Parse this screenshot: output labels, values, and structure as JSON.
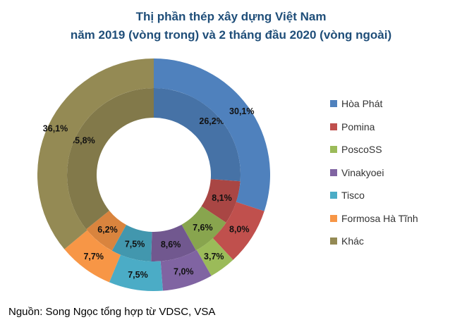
{
  "chart_data": {
    "type": "pie",
    "subtype": "double-donut",
    "title": "Thị phần thép xây dựng Việt Nam",
    "subtitle": "năm 2019 (vòng trong) và 2 tháng đầu 2020 (vòng ngoài)",
    "categories": [
      "Hòa Phát",
      "Pomina",
      "PoscoSS",
      "Vinakyoei",
      "Tisco",
      "Formosa Hà Tĩnh",
      "Khác"
    ],
    "colors": [
      "#4f81bd",
      "#c0504d",
      "#9bbb59",
      "#8064a2",
      "#4bacc6",
      "#f79646",
      "#948a54"
    ],
    "series": [
      {
        "name": "2019 (vòng trong)",
        "values": [
          26.2,
          8.1,
          7.6,
          8.6,
          7.5,
          6.2,
          35.8
        ],
        "labels": [
          "26,2%",
          "8,1%",
          "7,6%",
          "8,6%",
          "7,5%",
          "6,2%",
          "35,8%"
        ]
      },
      {
        "name": "2 tháng đầu 2020 (vòng ngoài)",
        "values": [
          30.1,
          8.0,
          3.7,
          7.0,
          7.5,
          7.7,
          36.1
        ],
        "labels": [
          "30,1%",
          "8,0%",
          "3,7%",
          "7,0%",
          "7,5%",
          "7,7%",
          "36,1%"
        ]
      }
    ],
    "legend_position": "right"
  },
  "source": "Nguồn: Song Ngọc tổng hợp từ VDSC, VSA"
}
